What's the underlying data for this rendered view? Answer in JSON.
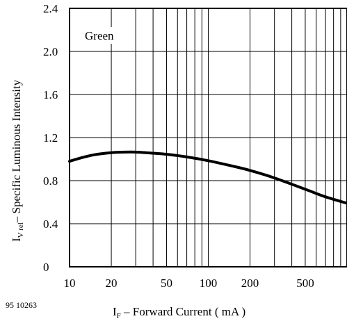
{
  "figure_number": "95 10263",
  "chart_data": {
    "type": "line",
    "x_scale": "log",
    "xlim": [
      10,
      1000
    ],
    "ylim": [
      0,
      2.4
    ],
    "y_ticks": [
      {
        "value": 0,
        "label": "0"
      },
      {
        "value": 0.4,
        "label": "0.4"
      },
      {
        "value": 0.8,
        "label": "0.8"
      },
      {
        "value": 1.2,
        "label": "1.2"
      },
      {
        "value": 1.6,
        "label": "1.6"
      },
      {
        "value": 2.0,
        "label": "2.0"
      },
      {
        "value": 2.4,
        "label": "2.4"
      }
    ],
    "x_ticks": [
      {
        "value": 10,
        "label": "10"
      },
      {
        "value": 20,
        "label": "20"
      },
      {
        "value": 50,
        "label": "50"
      },
      {
        "value": 100,
        "label": "100"
      },
      {
        "value": 200,
        "label": "200"
      },
      {
        "value": 500,
        "label": "500"
      }
    ],
    "x_gridlines": [
      10,
      20,
      30,
      40,
      50,
      60,
      70,
      80,
      90,
      100,
      200,
      300,
      400,
      500,
      600,
      700,
      800,
      900,
      1000
    ],
    "y_gridlines": [
      0.4,
      0.8,
      1.2,
      1.6,
      2.0
    ],
    "grid": true,
    "annotation": "Green",
    "xlabel": {
      "main": "I",
      "sub": "F",
      "rest": " – Forward Current ( mA )"
    },
    "ylabel": {
      "main": "I",
      "sub": "V rel",
      "rest": "– Specific Luminous Intensity"
    },
    "series": [
      {
        "x": [
          10,
          12,
          15,
          20,
          25,
          30,
          40,
          50,
          70,
          100,
          150,
          200,
          300,
          500,
          700,
          1000
        ],
        "y": [
          0.98,
          1.01,
          1.04,
          1.06,
          1.065,
          1.065,
          1.055,
          1.045,
          1.02,
          0.985,
          0.935,
          0.895,
          0.825,
          0.72,
          0.65,
          0.59
        ]
      }
    ]
  }
}
